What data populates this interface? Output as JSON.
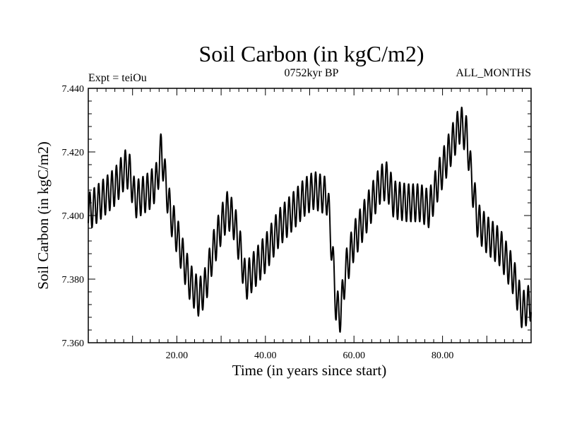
{
  "header": {
    "title": "Soil Carbon (in kgC/m2)",
    "left": "Expt = teiOu",
    "center": "0752kyr BP",
    "right": "ALL_MONTHS"
  },
  "chart_data": {
    "type": "line",
    "title": "Soil Carbon (in kgC/m2)",
    "xlabel": "Time (in years since start)",
    "ylabel": "Soil Carbon (in kgC/m2)",
    "xlim": [
      0,
      100
    ],
    "ylim": [
      7.36,
      7.44
    ],
    "xticks": [
      20,
      40,
      60,
      80
    ],
    "xtick_labels": [
      "20.00",
      "40.00",
      "60.00",
      "80.00"
    ],
    "yticks": [
      7.36,
      7.38,
      7.4,
      7.42,
      7.44
    ],
    "ytick_labels": [
      "7.360",
      "7.380",
      "7.400",
      "7.420",
      "7.440"
    ],
    "seasonal_amplitude": 0.006,
    "seasonal_cycles_per_year": 1,
    "trend_points": [
      [
        0,
        7.401
      ],
      [
        3,
        7.405
      ],
      [
        6,
        7.409
      ],
      [
        8.5,
        7.415
      ],
      [
        9.5,
        7.413
      ],
      [
        10.5,
        7.405
      ],
      [
        12,
        7.406
      ],
      [
        14,
        7.408
      ],
      [
        15.5,
        7.411
      ],
      [
        16.5,
        7.421
      ],
      [
        17.3,
        7.412
      ],
      [
        18.5,
        7.401
      ],
      [
        20,
        7.394
      ],
      [
        21.5,
        7.386
      ],
      [
        23,
        7.379
      ],
      [
        25,
        7.374
      ],
      [
        26.5,
        7.378
      ],
      [
        28,
        7.388
      ],
      [
        30,
        7.397
      ],
      [
        31.5,
        7.402
      ],
      [
        33,
        7.398
      ],
      [
        34.5,
        7.388
      ],
      [
        35.5,
        7.379
      ],
      [
        37,
        7.382
      ],
      [
        40,
        7.388
      ],
      [
        43,
        7.396
      ],
      [
        46,
        7.401
      ],
      [
        49,
        7.406
      ],
      [
        51,
        7.408
      ],
      [
        54,
        7.406
      ],
      [
        55,
        7.39
      ],
      [
        56,
        7.371
      ],
      [
        57,
        7.369
      ],
      [
        58,
        7.382
      ],
      [
        60,
        7.392
      ],
      [
        63,
        7.401
      ],
      [
        66,
        7.41
      ],
      [
        67.5,
        7.411
      ],
      [
        69,
        7.405
      ],
      [
        72,
        7.404
      ],
      [
        75,
        7.404
      ],
      [
        77,
        7.402
      ],
      [
        79,
        7.411
      ],
      [
        82,
        7.422
      ],
      [
        84,
        7.429
      ],
      [
        85.5,
        7.425
      ],
      [
        86.5,
        7.412
      ],
      [
        88,
        7.398
      ],
      [
        90,
        7.394
      ],
      [
        93,
        7.39
      ],
      [
        96,
        7.381
      ],
      [
        98,
        7.37
      ],
      [
        100,
        7.373
      ]
    ]
  }
}
